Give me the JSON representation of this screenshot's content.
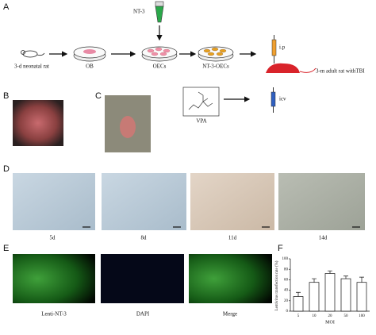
{
  "panels": {
    "a": {
      "label": "A",
      "nt3": "NT-3",
      "rat": "3-d neonatal rat",
      "ob": "OB",
      "oecs": "OECs",
      "nt3_oecs": "NT-3-OECs",
      "ip": "i.p",
      "adult": "3-m adult rat withTBI",
      "vpa": "VPA",
      "icv": "icv"
    },
    "b": {
      "label": "B"
    },
    "c": {
      "label": "C"
    },
    "d": {
      "label": "D",
      "times": [
        "5d",
        "8d",
        "11d",
        "14d"
      ]
    },
    "e": {
      "label": "E",
      "stains": [
        "Lenti-NT-3",
        "DAPI",
        "Merge"
      ]
    },
    "f": {
      "label": "F"
    }
  },
  "chart_data": {
    "type": "bar",
    "ylabel": "Lentivirus transfection rate (%)",
    "xlabel": "MOI",
    "categories": [
      "5",
      "10",
      "20",
      "50",
      "100"
    ],
    "values": [
      28,
      55,
      72,
      62,
      55
    ],
    "errors": [
      8,
      7,
      5,
      5,
      10
    ],
    "color": "#ffffff",
    "ylim": [
      0,
      100
    ],
    "yticks": [
      0,
      20,
      40,
      60,
      80,
      100
    ]
  }
}
